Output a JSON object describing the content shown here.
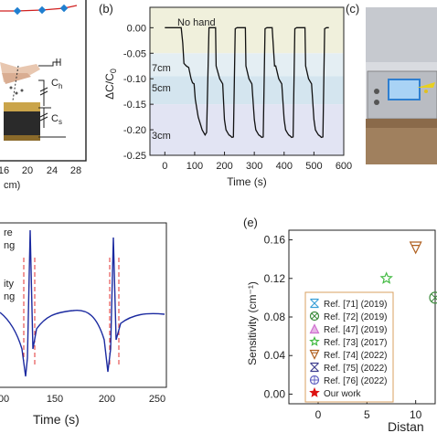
{
  "panel_b": {
    "label": "(b)",
    "xlabel": "Time (s)",
    "ylabel": "ΔC/C",
    "ylabel_sub": "0",
    "xticks": [
      0,
      100,
      200,
      300,
      400,
      500,
      600
    ],
    "yticks": [
      "0.00",
      "-0.05",
      "-0.10",
      "-0.15",
      "-0.20",
      "-0.25"
    ],
    "annotations": [
      "No hand",
      "7cm",
      "5cm",
      "3cm"
    ]
  },
  "panel_a": {
    "xticks": [
      "16",
      "20",
      "24",
      "28"
    ],
    "xlabel_fragment": "cm)",
    "circuit_labels": [
      "C",
      "C"
    ],
    "circuit_subs": [
      "h",
      "s"
    ]
  },
  "panel_c": {
    "label": "(c)"
  },
  "panel_d": {
    "xticks": [
      "00",
      "150",
      "200",
      "250"
    ],
    "xlabel_fragment": "Time (s)",
    "text_fragments": [
      "re",
      "ng",
      "ity",
      "ng"
    ]
  },
  "panel_e": {
    "label": "(e)",
    "ylabel": "Sensitivity (cm⁻¹)",
    "xlabel_fragment": "Distan",
    "yticks": [
      "0.00",
      "0.04",
      "0.08",
      "0.12",
      "0.16"
    ],
    "xticks": [
      "0",
      "5",
      "10"
    ],
    "legend": [
      {
        "label": "Ref. [71] (2019)",
        "color": "#3aa0d8",
        "symbol": "x-cross"
      },
      {
        "label": "Ref. [72] (2019)",
        "color": "#3a8a3a",
        "symbol": "circle-x"
      },
      {
        "label": "Ref. [47] (2019)",
        "color": "#d070d0",
        "symbol": "triangle"
      },
      {
        "label": "Ref. [73] (2017)",
        "color": "#44bb44",
        "symbol": "star-open"
      },
      {
        "label": "Ref. [74] (2022)",
        "color": "#b06020",
        "symbol": "tri-down"
      },
      {
        "label": "Ref. [75] (2022)",
        "color": "#404090",
        "symbol": "x-cross"
      },
      {
        "label": "Ref. [76] (2022)",
        "color": "#6060c0",
        "symbol": "circle-plus"
      },
      {
        "label": "Our work",
        "color": "#dd1111",
        "symbol": "star"
      }
    ]
  },
  "colors": {
    "trace": "#111111",
    "trace_d": "#1b2aa0",
    "axis": "#222222",
    "marker_a": "#1f7fd0",
    "line_a": "#d02020",
    "dashed": "#e03030"
  },
  "chart_data": [
    {
      "type": "line",
      "title": "",
      "xlabel": "Time (s)",
      "ylabel": "ΔC/C0",
      "xlim": [
        -50,
        600
      ],
      "ylim": [
        -0.25,
        0.04
      ],
      "grid": false,
      "bands": [
        {
          "label": "No hand",
          "y": [
            -0.05,
            0.04
          ],
          "color": "#f0f0dc"
        },
        {
          "label": "7cm",
          "y": [
            -0.095,
            -0.05
          ],
          "color": "#e4eef3"
        },
        {
          "label": "5cm",
          "y": [
            -0.15,
            -0.095
          ],
          "color": "#d4e5ef"
        },
        {
          "label": "3cm",
          "y": [
            -0.25,
            -0.15
          ],
          "color": "#e2e4f3"
        }
      ],
      "series": [
        {
          "x": [
            0,
            55,
            60,
            64,
            72,
            80,
            88,
            93,
            98,
            102,
            112,
            120,
            125,
            130,
            135,
            140,
            148,
            155,
            160,
            170,
            172,
            184,
            194,
            200,
            205,
            210,
            215,
            220,
            225,
            230,
            236,
            242,
            250,
            260,
            270,
            272,
            282,
            292,
            300,
            305,
            310,
            315,
            320,
            325,
            330,
            336,
            342,
            350,
            355,
            360,
            368,
            372,
            382,
            392,
            400,
            405,
            410,
            415,
            420,
            425,
            430,
            436,
            442,
            450,
            460,
            470,
            472,
            482,
            492,
            500,
            505,
            510,
            515,
            520,
            525,
            530,
            536,
            542,
            550
          ],
          "y": [
            0.0,
            0.0,
            -0.03,
            -0.07,
            -0.075,
            -0.078,
            -0.1,
            -0.108,
            -0.11,
            -0.14,
            -0.175,
            -0.19,
            -0.2,
            -0.205,
            -0.21,
            -0.205,
            0.0,
            0.0,
            0.0,
            0.0,
            -0.075,
            -0.1,
            -0.11,
            -0.18,
            -0.2,
            -0.205,
            -0.21,
            -0.212,
            -0.215,
            -0.214,
            -0.002,
            0.0,
            0.0,
            0.0,
            0.0,
            -0.075,
            -0.1,
            -0.11,
            -0.18,
            -0.2,
            -0.205,
            -0.21,
            -0.212,
            -0.215,
            -0.214,
            -0.002,
            0.0,
            0.0,
            0.0,
            0.0,
            -0.075,
            -0.075,
            -0.1,
            -0.11,
            -0.18,
            -0.2,
            -0.205,
            -0.21,
            -0.212,
            -0.215,
            -0.214,
            -0.002,
            0.0,
            0.0,
            0.0,
            0.0,
            -0.075,
            -0.1,
            -0.11,
            -0.18,
            -0.2,
            -0.205,
            -0.21,
            -0.212,
            -0.215,
            -0.214,
            -0.002,
            0.0,
            0.0
          ]
        }
      ]
    },
    {
      "type": "scatter",
      "ylabel": "Sensitivity (cm⁻¹)",
      "ylim": [
        -0.01,
        0.17
      ],
      "xlim": [
        -3,
        12
      ],
      "points": [
        {
          "series": "Ref. [73] (2017)",
          "x": 7,
          "y": 0.12
        },
        {
          "series": "Ref. [74] (2022)",
          "x": 10,
          "y": 0.152
        },
        {
          "series": "Ref. [72] (2019)",
          "x": 12,
          "y": 0.1
        }
      ]
    }
  ]
}
